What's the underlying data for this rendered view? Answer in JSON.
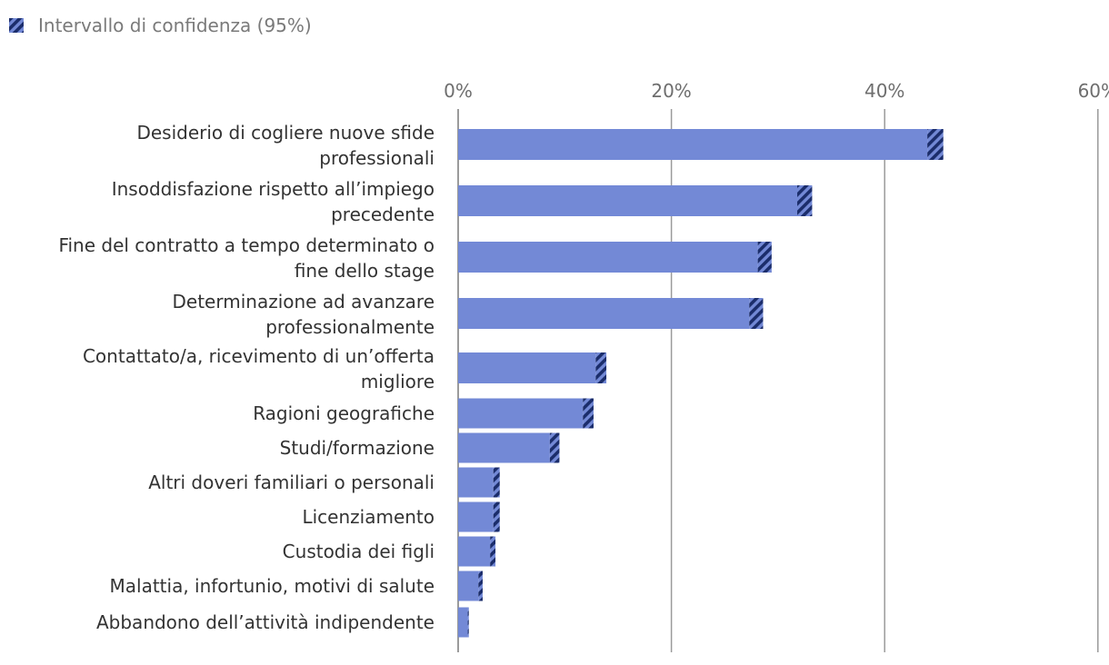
{
  "chart_data": {
    "type": "bar",
    "orientation": "horizontal",
    "legend": {
      "position": "top-left",
      "entries": [
        {
          "name": "Intervallo di confidenza (95%)",
          "swatch": "hatch"
        }
      ]
    },
    "x_axis": {
      "ticks": [
        0,
        20,
        40,
        60
      ],
      "tick_labels": [
        "0%",
        "20%",
        "40%",
        "60%"
      ],
      "position": "top",
      "range": [
        0,
        60
      ],
      "grid": true
    },
    "categories": [
      [
        "Desiderio di cogliere nuove sfide",
        "professionali"
      ],
      [
        "Insoddisfazione rispetto all’impiego",
        "precedente"
      ],
      [
        "Fine del contratto a tempo determinato o",
        "fine dello stage"
      ],
      [
        "Determinazione ad avanzare",
        "professionalmente"
      ],
      [
        "Contattato/a, ricevimento di un’offerta",
        "migliore"
      ],
      [
        "Ragioni geografiche"
      ],
      [
        "Studi/formazione"
      ],
      [
        "Altri doveri familiari o personali"
      ],
      [
        "Licenziamento"
      ],
      [
        "Custodia dei figli"
      ],
      [
        "Malattia, infortunio, motivi di salute"
      ],
      [
        "Abbandono dell’attività indipendente"
      ]
    ],
    "values": [
      44.0,
      31.8,
      28.1,
      27.3,
      12.9,
      11.7,
      8.6,
      3.3,
      3.3,
      3.0,
      1.9,
      0.9
    ],
    "ci_upper": [
      45.5,
      33.2,
      29.4,
      28.6,
      13.9,
      12.7,
      9.5,
      3.9,
      3.9,
      3.5,
      2.3,
      1.0
    ],
    "colors": {
      "bar": "#7389d6",
      "ci": "#1b2d6b",
      "grid": "#9a9a9a",
      "axis": "#7a7a7a"
    }
  }
}
